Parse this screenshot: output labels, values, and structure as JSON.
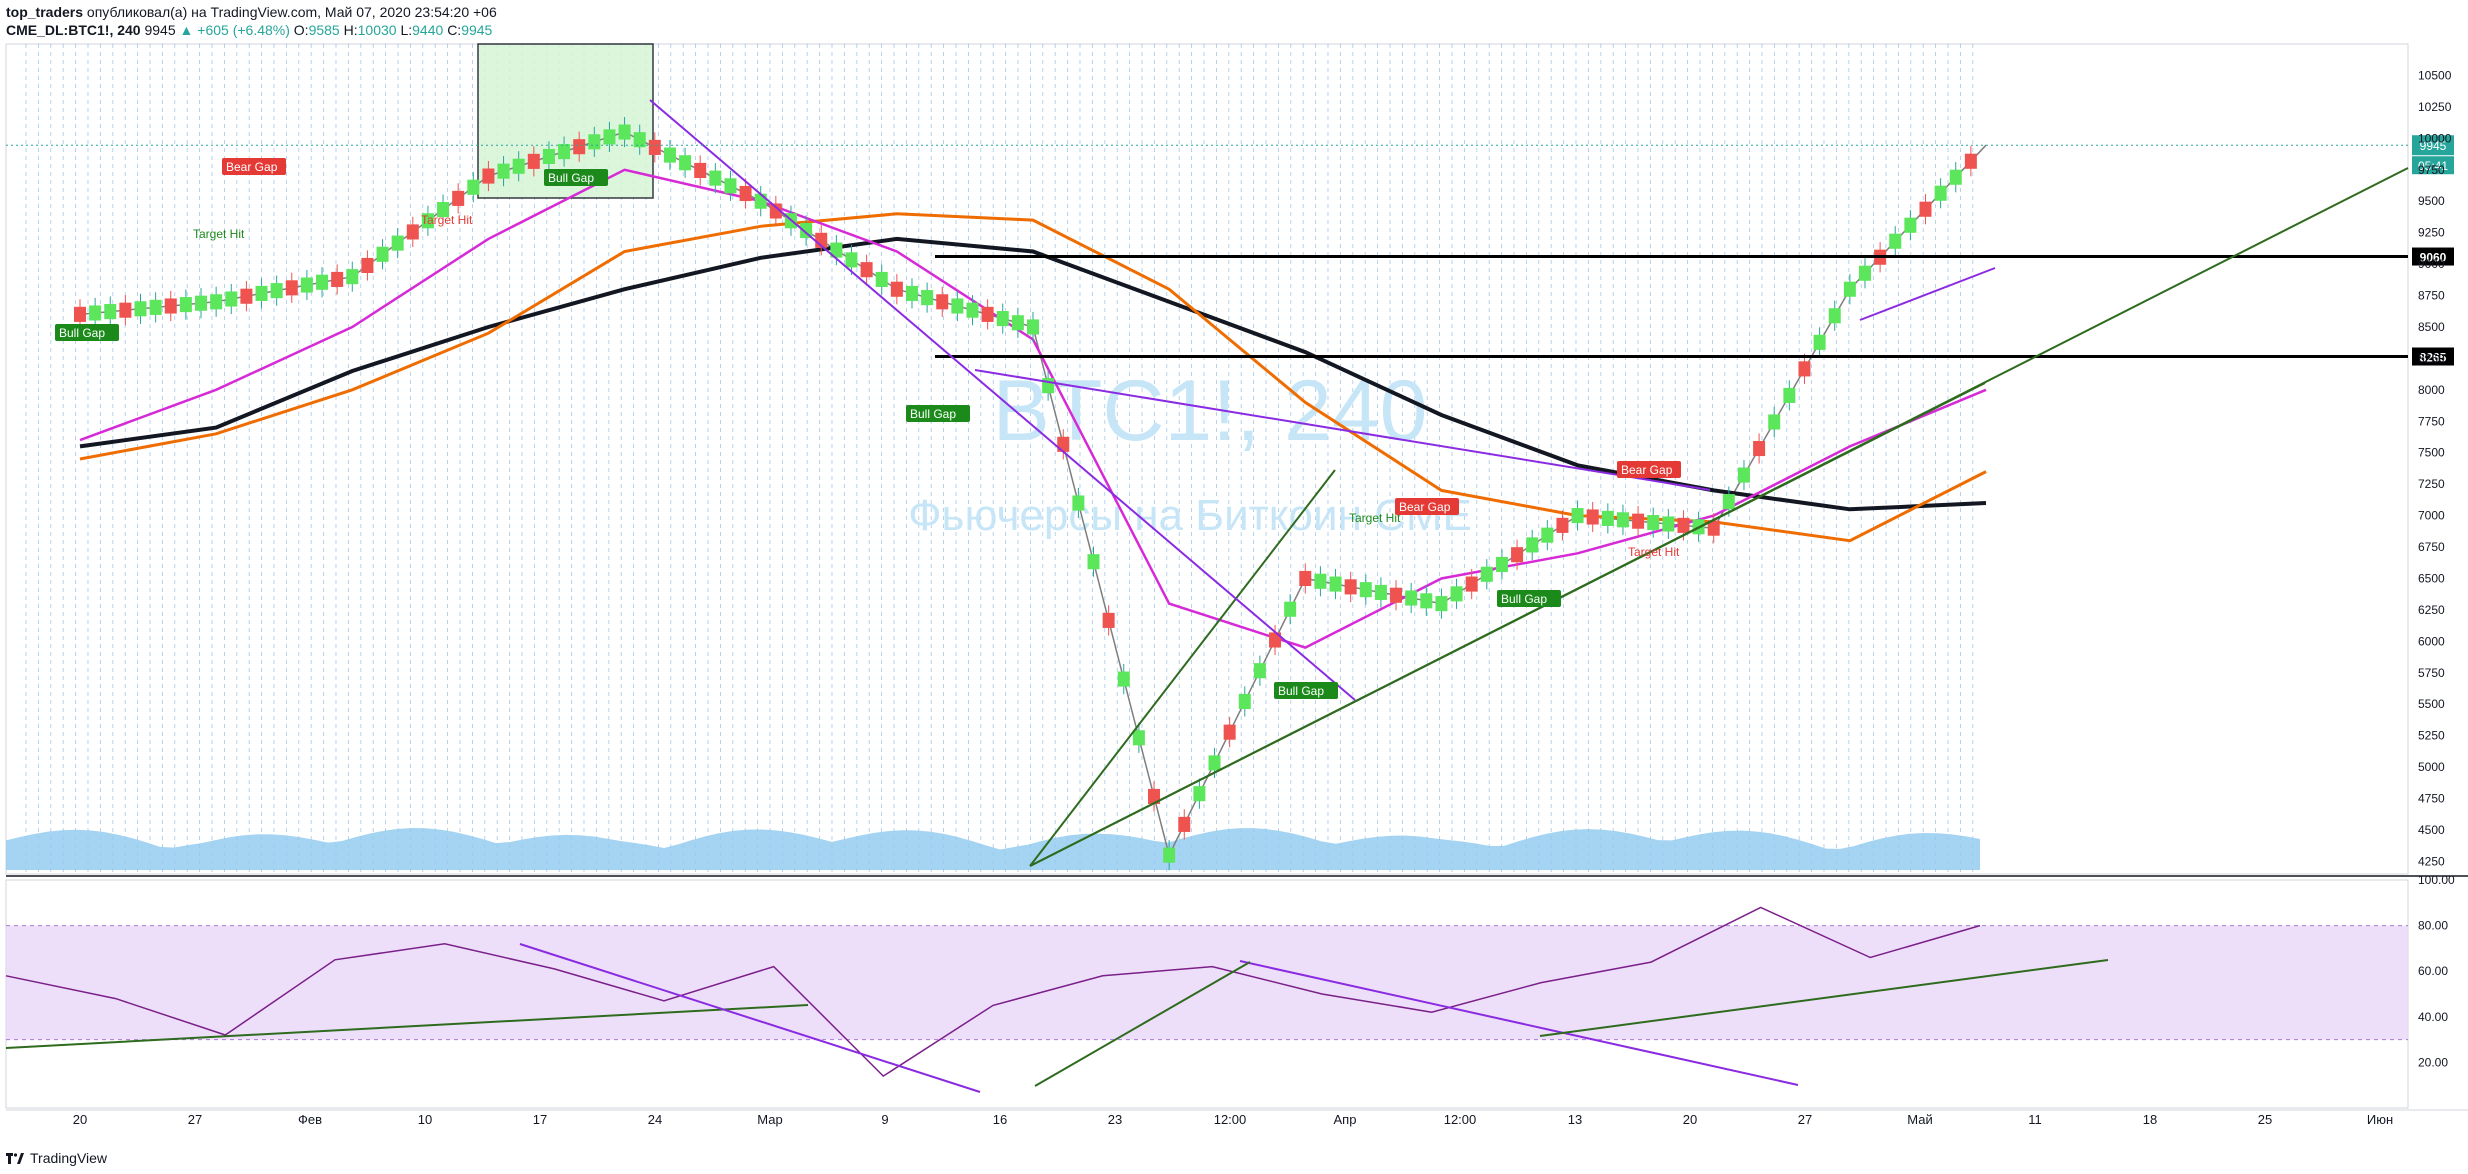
{
  "header": {
    "author": "top_traders",
    "published_text": "опубликовал(а) на TradingView.com, Май 07, 2020 23:54:20 +06",
    "symbol": "CME_DL:BTC1!, 240",
    "last": "9945",
    "change": "▲ +605 (+6.48%)",
    "o_label": "O:",
    "o_value": "9585",
    "h_label": "H:",
    "h_value": "10030",
    "l_label": "L:",
    "l_value": "9440",
    "c_label": "C:",
    "c_value": "9945"
  },
  "watermark": {
    "symbol": "BTC1!, 240",
    "description": "Фьючерсы на Биткоин CME"
  },
  "price_axis": {
    "ticks": [
      10500,
      10250,
      10000,
      9750,
      9500,
      9250,
      9000,
      8750,
      8500,
      8250,
      8000,
      7750,
      7500,
      7250,
      7000,
      6750,
      6500,
      6250,
      6000,
      5750,
      5500,
      5250,
      5000,
      4750,
      4500,
      4250
    ],
    "current_price_label": "9945",
    "countdown_label": "05:41",
    "level_labels": [
      "9060",
      "8265"
    ]
  },
  "rsi_axis": {
    "ticks": [
      "100.00",
      "80.00",
      "60.00",
      "40.00",
      "20.00"
    ]
  },
  "time_axis": {
    "labels": [
      "20",
      "27",
      "Фев",
      "10",
      "17",
      "24",
      "Мар",
      "9",
      "16",
      "23",
      "12:00",
      "Апр",
      "12:00",
      "13",
      "20",
      "27",
      "Май",
      "11",
      "18",
      "25",
      "Июн"
    ]
  },
  "annotations": [
    {
      "text": "Bear Gap",
      "kind": "bear"
    },
    {
      "text": "Bull Gap",
      "kind": "bull"
    },
    {
      "text": "Target Hit",
      "kind": "target-bull"
    },
    {
      "text": "Target Hit",
      "kind": "target-bear"
    },
    {
      "text": "Bull Gap",
      "kind": "bull"
    },
    {
      "text": "Bull Gap",
      "kind": "bull"
    },
    {
      "text": "Target Hit",
      "kind": "target-bull"
    },
    {
      "text": "Bear Gap",
      "kind": "bear"
    },
    {
      "text": "Bull Gap",
      "kind": "bull"
    },
    {
      "text": "Bear Gap",
      "kind": "bear"
    },
    {
      "text": "Target Hit",
      "kind": "target-bear"
    },
    {
      "text": "Bull Gap",
      "kind": "bull"
    }
  ],
  "chart_data": {
    "type": "line",
    "title": "CME_DL:BTC1!, 240",
    "x": [
      "20",
      "27",
      "Фев",
      "10",
      "17",
      "24",
      "Мар",
      "9",
      "16",
      "23",
      "Апр",
      "13",
      "20",
      "27",
      "Май"
    ],
    "ylim": [
      4150,
      10750
    ],
    "series": [
      {
        "values": [
          8600,
          8700,
          8900,
          9700,
          10050,
          9500,
          8800,
          8500,
          4300,
          6500,
          6300,
          7000,
          6900,
          8800,
          9945
        ]
      },
      {
        "values": [
          7550,
          7700,
          8150,
          8500,
          8800,
          9050,
          9200,
          9100,
          8700,
          8300,
          7800,
          7400,
          7200,
          7050,
          7100
        ]
      },
      {
        "values": [
          7450,
          7650,
          8000,
          8450,
          9100,
          9300,
          9400,
          9350,
          8800,
          7900,
          7200,
          7000,
          6950,
          6800,
          7350
        ]
      },
      {
        "values": [
          7600,
          8000,
          8500,
          9200,
          9750,
          9500,
          9100,
          8400,
          6300,
          5950,
          6500,
          6700,
          7000,
          7550,
          8000
        ]
      }
    ],
    "rsi": {
      "ylim": [
        0,
        100
      ],
      "values": [
        58,
        48,
        32,
        65,
        72,
        61,
        47,
        62,
        14,
        45,
        58,
        62,
        50,
        42,
        55,
        64,
        88,
        66,
        80
      ],
      "band": [
        30,
        80
      ]
    },
    "levels": [
      9060,
      8265
    ]
  },
  "branding": {
    "tradingview": "TradingView"
  }
}
